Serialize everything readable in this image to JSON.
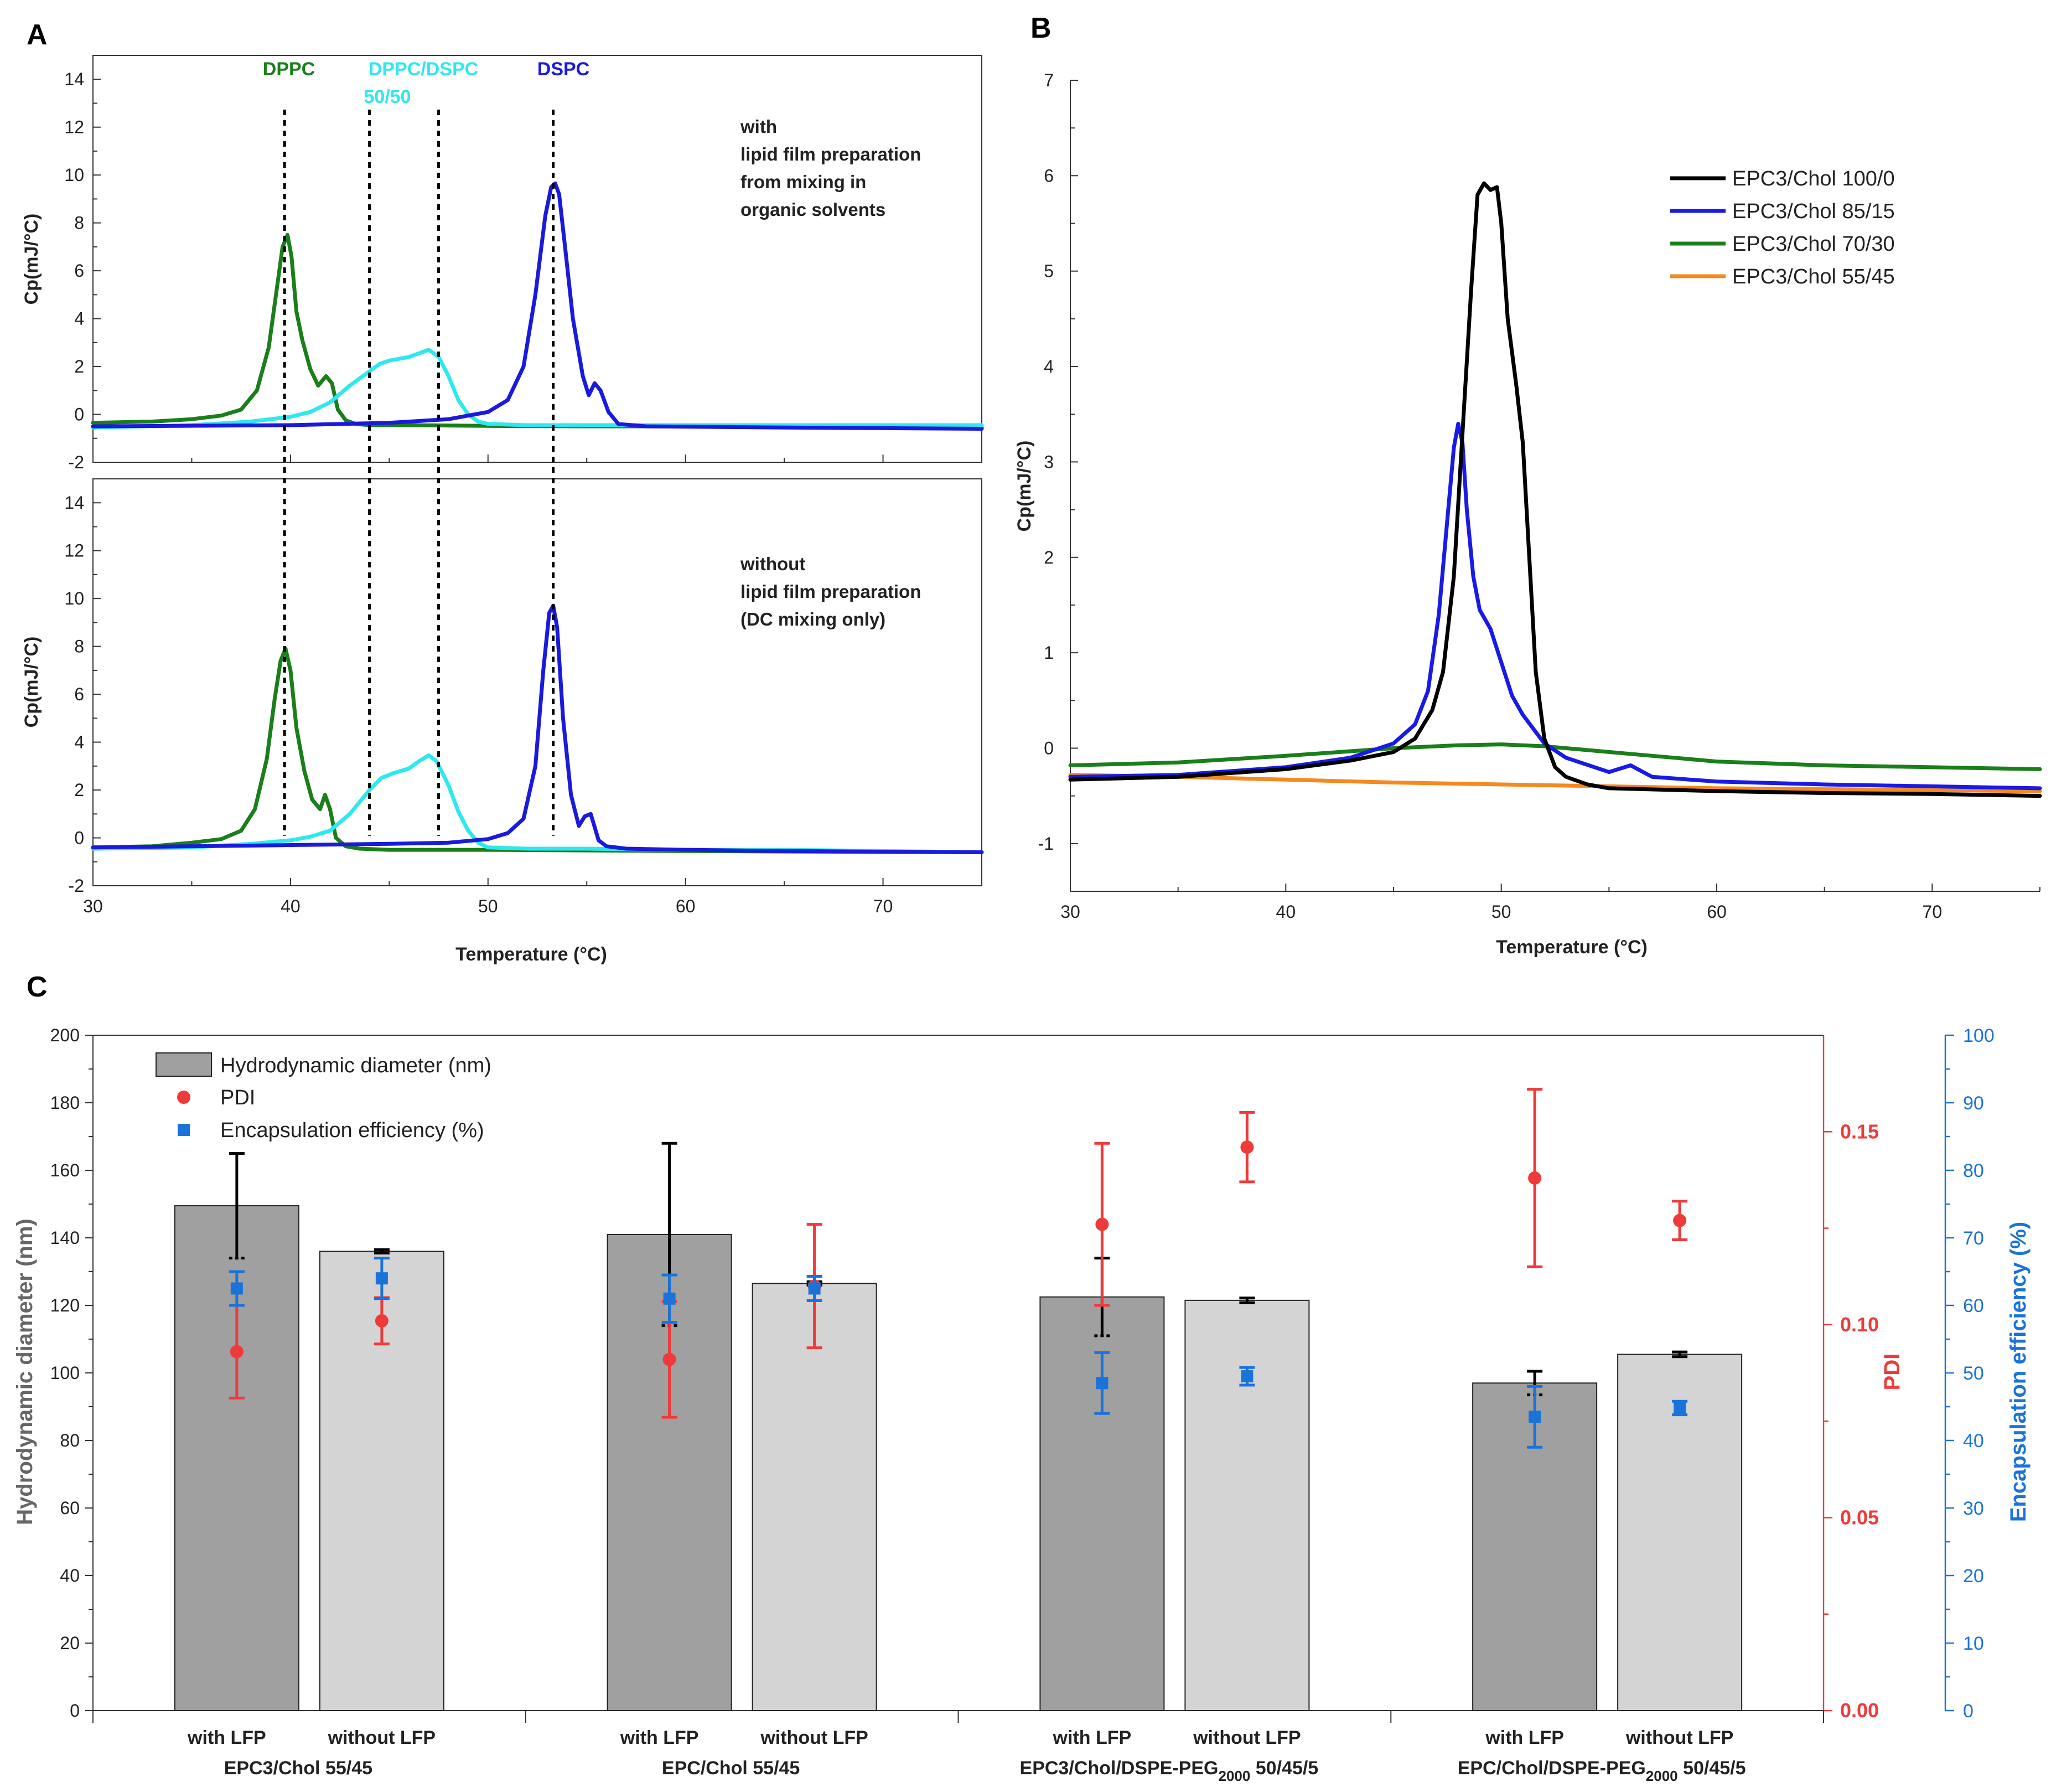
{
  "colors": {
    "dppc": "#1a7f1a",
    "mix": "#2ee8f0",
    "dspc": "#1a1adc",
    "black": "#000000",
    "blue": "#1a1ae6",
    "green": "#1a7f1a",
    "orange": "#f5891e",
    "bar_dark": "#a0a0a0",
    "bar_light": "#d4d4d4",
    "pdi": "#ee3a3a",
    "ee": "#1a73d8"
  },
  "chart_data": [
    {
      "panel": "A",
      "type": "line",
      "xlabel": "Temperature (°C)",
      "xlim": [
        30,
        75
      ],
      "xticks": [
        30,
        40,
        50,
        60,
        70
      ],
      "lipid_labels": {
        "dppc": "DPPC",
        "mix_line1": "DPPC/DSPC",
        "mix_line2": "50/50",
        "dspc": "DSPC"
      },
      "dashed_markers_x": [
        39.7,
        44.0,
        47.5,
        53.3
      ],
      "subplots": [
        {
          "name": "top",
          "ylabel": "Cp(mJ/°C)",
          "ylim": [
            -2,
            15
          ],
          "yticks": [
            -2,
            0,
            2,
            4,
            6,
            8,
            10,
            12,
            14
          ],
          "note_lines": [
            "with",
            "lipid film preparation",
            "from mixing in",
            "organic solvents"
          ],
          "series": [
            {
              "name": "DPPC",
              "color_key": "dppc",
              "x": [
                30,
                33,
                35,
                36.5,
                37.5,
                38.3,
                38.9,
                39.3,
                39.6,
                39.85,
                40.05,
                40.3,
                40.6,
                41.0,
                41.4,
                41.8,
                42.1,
                42.4,
                42.8,
                43.3,
                44,
                46,
                50,
                55,
                60,
                65,
                70,
                75
              ],
              "y": [
                -0.35,
                -0.3,
                -0.2,
                -0.05,
                0.2,
                1.0,
                2.8,
                5.2,
                7.0,
                7.5,
                6.6,
                4.3,
                3.1,
                1.9,
                1.2,
                1.6,
                1.3,
                0.2,
                -0.25,
                -0.4,
                -0.45,
                -0.45,
                -0.48,
                -0.5,
                -0.5,
                -0.5,
                -0.52,
                -0.55
              ]
            },
            {
              "name": "DPPC/DSPC 50/50",
              "color_key": "mix",
              "x": [
                30,
                35,
                38,
                40,
                41,
                42,
                43,
                44,
                44.5,
                45,
                46,
                47,
                47.5,
                48,
                48.5,
                49,
                49.5,
                50,
                52,
                55,
                60,
                65,
                70,
                75
              ],
              "y": [
                -0.55,
                -0.45,
                -0.3,
                -0.1,
                0.1,
                0.5,
                1.2,
                1.8,
                2.1,
                2.25,
                2.4,
                2.7,
                2.4,
                1.6,
                0.6,
                0.0,
                -0.3,
                -0.4,
                -0.45,
                -0.45,
                -0.45,
                -0.45,
                -0.45,
                -0.45
              ]
            },
            {
              "name": "DSPC",
              "color_key": "dspc",
              "x": [
                30,
                40,
                45,
                48,
                50,
                51,
                51.8,
                52.4,
                52.9,
                53.2,
                53.4,
                53.6,
                53.9,
                54.3,
                54.8,
                55.1,
                55.4,
                55.7,
                56.1,
                56.6,
                58,
                65,
                75
              ],
              "y": [
                -0.5,
                -0.45,
                -0.35,
                -0.2,
                0.1,
                0.6,
                2.0,
                5.0,
                8.3,
                9.5,
                9.65,
                9.2,
                7.0,
                4.0,
                1.6,
                0.8,
                1.3,
                1.0,
                0.1,
                -0.4,
                -0.5,
                -0.55,
                -0.6
              ]
            }
          ]
        },
        {
          "name": "bottom",
          "ylabel": "Cp(mJ/°C)",
          "ylim": [
            -2,
            15
          ],
          "yticks": [
            -2,
            0,
            2,
            4,
            6,
            8,
            10,
            12,
            14
          ],
          "note_lines": [
            "without",
            "lipid film preparation",
            "(DC mixing only)"
          ],
          "series": [
            {
              "name": "DPPC",
              "color_key": "dppc",
              "x": [
                30,
                33,
                35,
                36.5,
                37.5,
                38.2,
                38.8,
                39.2,
                39.5,
                39.75,
                40.0,
                40.3,
                40.7,
                41.1,
                41.5,
                41.75,
                42.0,
                42.3,
                42.8,
                43.5,
                45,
                50,
                60,
                75
              ],
              "y": [
                -0.4,
                -0.35,
                -0.2,
                -0.05,
                0.3,
                1.2,
                3.3,
                5.8,
                7.4,
                7.9,
                7.0,
                4.6,
                2.8,
                1.6,
                1.2,
                1.8,
                1.2,
                0.0,
                -0.35,
                -0.45,
                -0.5,
                -0.5,
                -0.55,
                -0.6
              ]
            },
            {
              "name": "DPPC/DSPC 50/50",
              "color_key": "mix",
              "x": [
                30,
                35,
                38,
                40,
                41,
                42,
                43,
                44,
                44.6,
                45.2,
                46,
                46.5,
                47,
                47.4,
                48,
                48.5,
                49,
                49.5,
                50,
                52,
                55,
                60,
                65,
                70,
                75
              ],
              "y": [
                -0.45,
                -0.4,
                -0.25,
                -0.1,
                0.05,
                0.3,
                1.0,
                2.0,
                2.5,
                2.7,
                2.9,
                3.2,
                3.45,
                3.2,
                2.2,
                1.1,
                0.3,
                -0.2,
                -0.4,
                -0.45,
                -0.45,
                -0.5,
                -0.5,
                -0.55,
                -0.6
              ]
            },
            {
              "name": "DSPC",
              "color_key": "dspc",
              "x": [
                30,
                40,
                45,
                48,
                50,
                51,
                51.8,
                52.4,
                52.8,
                53.1,
                53.3,
                53.5,
                53.8,
                54.2,
                54.6,
                54.9,
                55.2,
                55.6,
                56,
                57,
                60,
                65,
                75
              ],
              "y": [
                -0.4,
                -0.3,
                -0.25,
                -0.2,
                -0.05,
                0.2,
                0.8,
                3.0,
                7.0,
                9.4,
                9.7,
                8.8,
                5.0,
                1.8,
                0.5,
                0.9,
                1.0,
                -0.1,
                -0.35,
                -0.45,
                -0.5,
                -0.55,
                -0.6
              ]
            }
          ]
        }
      ]
    },
    {
      "panel": "B",
      "type": "line",
      "xlabel": "Temperature (°C)",
      "ylabel": "Cp(mJ/°C)",
      "xlim": [
        30,
        75
      ],
      "ylim": [
        -1.5,
        7
      ],
      "xticks": [
        30,
        40,
        50,
        60,
        70
      ],
      "yticks": [
        -1,
        0,
        1,
        2,
        3,
        4,
        5,
        6,
        7
      ],
      "legend": "top-right",
      "series": [
        {
          "name": "EPC3/Chol 100/0",
          "color_key": "black",
          "x": [
            30,
            35,
            40,
            43,
            45,
            46,
            46.8,
            47.3,
            47.8,
            48.2,
            48.6,
            48.9,
            49.2,
            49.5,
            49.8,
            50.0,
            50.3,
            50.7,
            51.0,
            51.3,
            51.6,
            52.0,
            52.5,
            53,
            54,
            55,
            60,
            65,
            70,
            75
          ],
          "y": [
            -0.33,
            -0.3,
            -0.22,
            -0.13,
            -0.04,
            0.1,
            0.4,
            0.8,
            1.8,
            3.3,
            4.8,
            5.8,
            5.92,
            5.85,
            5.88,
            5.5,
            4.5,
            3.8,
            3.2,
            2.0,
            0.8,
            0.1,
            -0.2,
            -0.3,
            -0.38,
            -0.42,
            -0.45,
            -0.47,
            -0.48,
            -0.5
          ]
        },
        {
          "name": "EPC3/Chol 85/15",
          "color_key": "blue",
          "x": [
            30,
            35,
            40,
            43,
            45,
            46,
            46.6,
            47.1,
            47.5,
            47.8,
            48.0,
            48.2,
            48.4,
            48.7,
            49.0,
            49.5,
            50,
            50.5,
            51,
            51.5,
            52,
            53,
            55,
            56,
            57,
            60,
            65,
            70,
            75
          ],
          "y": [
            -0.3,
            -0.28,
            -0.2,
            -0.1,
            0.05,
            0.25,
            0.6,
            1.4,
            2.4,
            3.15,
            3.4,
            3.2,
            2.5,
            1.8,
            1.45,
            1.25,
            0.9,
            0.55,
            0.35,
            0.2,
            0.05,
            -0.1,
            -0.25,
            -0.18,
            -0.3,
            -0.35,
            -0.38,
            -0.4,
            -0.42
          ]
        },
        {
          "name": "EPC3/Chol 70/30",
          "color_key": "green",
          "x": [
            30,
            35,
            40,
            45,
            48,
            50,
            52,
            55,
            58,
            60,
            65,
            70,
            75
          ],
          "y": [
            -0.18,
            -0.15,
            -0.08,
            0.0,
            0.03,
            0.04,
            0.02,
            -0.04,
            -0.1,
            -0.14,
            -0.18,
            -0.2,
            -0.22
          ]
        },
        {
          "name": "EPC3/Chol 55/45",
          "color_key": "orange",
          "x": [
            30,
            35,
            40,
            45,
            50,
            55,
            60,
            65,
            70,
            75
          ],
          "y": [
            -0.28,
            -0.3,
            -0.33,
            -0.36,
            -0.38,
            -0.4,
            -0.42,
            -0.43,
            -0.44,
            -0.45
          ]
        }
      ]
    },
    {
      "panel": "C",
      "type": "bar",
      "ylabel": "Hydrodynamic diameter (nm)",
      "ylim": [
        0,
        200
      ],
      "yticks": [
        0,
        20,
        40,
        60,
        80,
        100,
        120,
        140,
        160,
        180,
        200
      ],
      "y2label": "PDI",
      "y2lim": [
        0,
        0.175
      ],
      "y2ticks": [
        0.0,
        0.05,
        0.1,
        0.15
      ],
      "y2ticklabels": [
        "0.00",
        "0.05",
        "0.10",
        "0.15"
      ],
      "y3label": "Encapsulation efficiency (%)",
      "y3lim": [
        0,
        100
      ],
      "y3ticks": [
        0,
        10,
        20,
        30,
        40,
        50,
        60,
        70,
        80,
        90,
        100
      ],
      "legend": {
        "placement": "top-left",
        "entries": [
          "Hydrodynamic diameter (nm)",
          "PDI",
          "Encapsulation efficiency (%)"
        ]
      },
      "groups": [
        {
          "label": "EPC3/Chol 55/45",
          "bars": [
            {
              "label": "with LFP",
              "diameter": 149.5,
              "diameter_err": 15.5,
              "pdi": 0.093,
              "pdi_err": 0.012,
              "ee": 62.5,
              "ee_err": 2.5
            },
            {
              "label": "without LFP",
              "diameter": 136.0,
              "diameter_err": 0.5,
              "pdi": 0.101,
              "pdi_err": 0.006,
              "ee": 64.0,
              "ee_err": 3.0
            }
          ]
        },
        {
          "label": "EPC/Chol 55/45",
          "bars": [
            {
              "label": "with LFP",
              "diameter": 141.0,
              "diameter_err": 27.0,
              "pdi": 0.091,
              "pdi_err": 0.015,
              "ee": 61.0,
              "ee_err": 3.5
            },
            {
              "label": "without LFP",
              "diameter": 126.5,
              "diameter_err": 0.5,
              "pdi": 0.11,
              "pdi_err": 0.016,
              "ee": 62.5,
              "ee_err": 1.8
            }
          ]
        },
        {
          "label_main": "EPC3/Chol/DSPE-PEG",
          "label_sub": "2000",
          "label_tail": " 50/45/5",
          "bars": [
            {
              "label": "with LFP",
              "diameter": 122.5,
              "diameter_err": 11.5,
              "pdi": 0.126,
              "pdi_err": 0.021,
              "ee": 48.5,
              "ee_err": 4.5
            },
            {
              "label": "without LFP",
              "diameter": 121.5,
              "diameter_err": 0.7,
              "pdi": 0.146,
              "pdi_err": 0.009,
              "ee": 49.5,
              "ee_err": 1.3
            }
          ]
        },
        {
          "label_main": "EPC/Chol/DSPE-PEG",
          "label_sub": "2000",
          "label_tail": " 50/45/5",
          "bars": [
            {
              "label": "with LFP",
              "diameter": 97.0,
              "diameter_err": 3.5,
              "pdi": 0.138,
              "pdi_err": 0.023,
              "ee": 43.5,
              "ee_err": 4.5
            },
            {
              "label": "without LFP",
              "diameter": 105.5,
              "diameter_err": 0.7,
              "pdi": 0.127,
              "pdi_err": 0.005,
              "ee": 44.8,
              "ee_err": 1.0
            }
          ]
        }
      ]
    }
  ]
}
